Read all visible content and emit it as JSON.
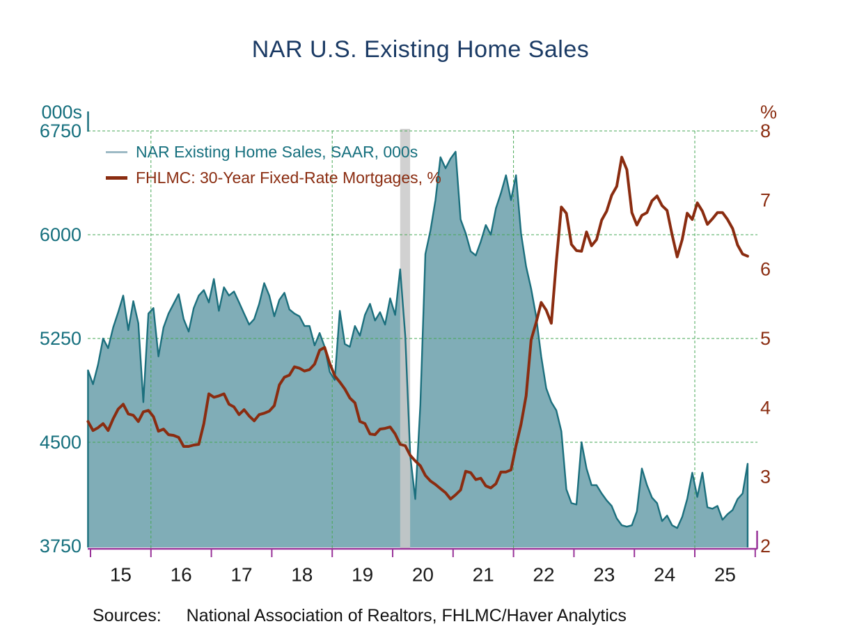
{
  "title": "NAR U.S. Existing Home Sales",
  "colors": {
    "title": "#1a3a64",
    "sales_area_fill": "#80adb7",
    "sales_line": "#1b6f7d",
    "sales_text": "#156f7d",
    "legend_sales_swatch": "#9dbac5",
    "mortgage_line": "#8a2c10",
    "mortgage_text": "#8a2c10",
    "gridline": "#46a754",
    "x_axis": "#993399",
    "x_label": "#1a1a1a",
    "recession_band": "#c9c9c9",
    "background": "#ffffff"
  },
  "left_axis": {
    "unit": "000s",
    "ticks": [
      6750,
      6000,
      5250,
      4500,
      3750
    ],
    "min": 3750,
    "max": 6750
  },
  "right_axis": {
    "unit": "%",
    "ticks": [
      8,
      7,
      6,
      5,
      4,
      3,
      2
    ],
    "min": 2,
    "max": 8
  },
  "x_axis": {
    "labels": [
      "15",
      "16",
      "17",
      "18",
      "19",
      "20",
      "21",
      "22",
      "23",
      "24",
      "25"
    ],
    "first_boundary_year": 2015,
    "num_boundaries": 12
  },
  "legend": [
    {
      "label": "NAR Existing Home Sales, SAAR, 000s"
    },
    {
      "label": "FHLMC: 30-Year Fixed-Rate Mortgages, %"
    }
  ],
  "sources": {
    "prefix": "Sources:",
    "text": "National Association of Realtors, FHLMC/Haver Analytics"
  },
  "chart_data": {
    "type": "area",
    "title": "NAR U.S. Existing Home Sales",
    "frequency": "monthly",
    "start": {
      "year": 2014,
      "month": 12
    },
    "end": {
      "year": 2025,
      "month": 11
    },
    "grid": {
      "horizontal_left_values": [
        6750,
        6000,
        5250,
        4500
      ],
      "vertical_years": [
        2016,
        2019,
        2022,
        2025
      ]
    },
    "recession_band": {
      "start_year": 2020.125,
      "end_year": 2020.29
    },
    "left_range": [
      3750,
      6750
    ],
    "right_range": [
      2,
      8
    ],
    "series": [
      {
        "name": "NAR Existing Home Sales, SAAR, 000s",
        "axis": "left",
        "style": "area",
        "values": [
          5020,
          4920,
          5060,
          5250,
          5180,
          5330,
          5440,
          5560,
          5310,
          5520,
          5360,
          4790,
          5430,
          5470,
          5120,
          5330,
          5430,
          5500,
          5570,
          5390,
          5300,
          5470,
          5560,
          5600,
          5510,
          5680,
          5450,
          5620,
          5560,
          5590,
          5510,
          5430,
          5350,
          5390,
          5500,
          5650,
          5560,
          5410,
          5530,
          5580,
          5460,
          5430,
          5410,
          5340,
          5340,
          5200,
          5290,
          5190,
          5010,
          4950,
          5450,
          5210,
          5190,
          5340,
          5270,
          5420,
          5500,
          5380,
          5440,
          5350,
          5540,
          5420,
          5750,
          5270,
          4400,
          4090,
          4770,
          5860,
          6030,
          6250,
          6560,
          6480,
          6550,
          6600,
          6110,
          6010,
          5880,
          5850,
          5950,
          6070,
          6000,
          6190,
          6300,
          6430,
          6250,
          6430,
          6010,
          5770,
          5610,
          5410,
          5120,
          4890,
          4790,
          4730,
          4580,
          4160,
          4060,
          4050,
          4500,
          4310,
          4190,
          4190,
          4130,
          4080,
          4040,
          3950,
          3900,
          3890,
          3900,
          4000,
          4310,
          4190,
          4100,
          4060,
          3930,
          3970,
          3900,
          3880,
          3960,
          4090,
          4280,
          4105,
          4280,
          4030,
          4020,
          4040,
          3940,
          3980,
          4010,
          4090,
          4130,
          4345
        ]
      },
      {
        "name": "FHLMC: 30-Year Fixed-Rate Mortgages, %",
        "axis": "right",
        "style": "line",
        "values": [
          3.8,
          3.67,
          3.71,
          3.77,
          3.67,
          3.84,
          3.98,
          4.05,
          3.91,
          3.89,
          3.8,
          3.94,
          3.96,
          3.87,
          3.66,
          3.69,
          3.61,
          3.6,
          3.57,
          3.44,
          3.44,
          3.46,
          3.47,
          3.77,
          4.2,
          4.15,
          4.17,
          4.2,
          4.05,
          4.01,
          3.9,
          3.97,
          3.88,
          3.81,
          3.9,
          3.92,
          3.95,
          4.03,
          4.33,
          4.44,
          4.47,
          4.59,
          4.57,
          4.53,
          4.55,
          4.63,
          4.83,
          4.87,
          4.64,
          4.46,
          4.37,
          4.27,
          4.14,
          4.07,
          3.8,
          3.77,
          3.62,
          3.61,
          3.69,
          3.7,
          3.72,
          3.62,
          3.47,
          3.45,
          3.31,
          3.23,
          3.16,
          3.02,
          2.94,
          2.89,
          2.83,
          2.77,
          2.68,
          2.74,
          2.81,
          3.08,
          3.06,
          2.96,
          2.98,
          2.87,
          2.84,
          2.9,
          3.07,
          3.07,
          3.1,
          3.45,
          3.76,
          4.17,
          4.98,
          5.23,
          5.52,
          5.41,
          5.22,
          6.11,
          6.9,
          6.81,
          6.36,
          6.27,
          6.26,
          6.54,
          6.34,
          6.43,
          6.71,
          6.84,
          7.07,
          7.2,
          7.62,
          7.44,
          6.82,
          6.64,
          6.78,
          6.82,
          6.99,
          7.06,
          6.92,
          6.85,
          6.5,
          6.18,
          6.43,
          6.81,
          6.72,
          6.96,
          6.84,
          6.65,
          6.73,
          6.82,
          6.82,
          6.72,
          6.59,
          6.35,
          6.22,
          6.19
        ]
      }
    ]
  }
}
